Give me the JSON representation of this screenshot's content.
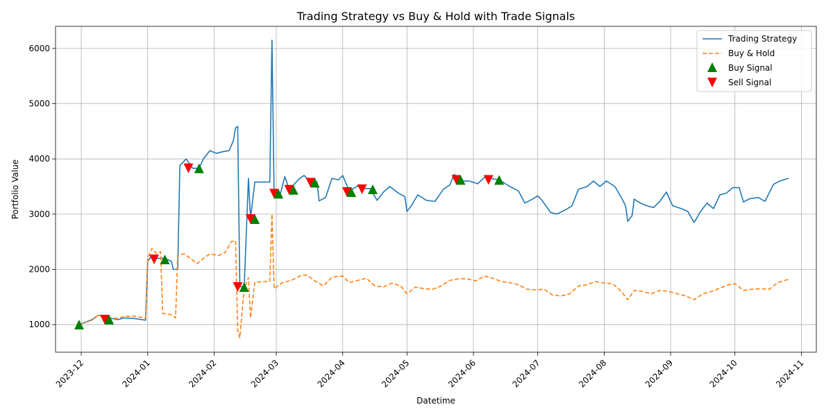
{
  "chart_data": {
    "type": "line",
    "title": "Trading Strategy vs Buy & Hold with Trade Signals",
    "xlabel": "Datetime",
    "ylabel": "Portfolio Value",
    "xlim": [
      "2023-11-19",
      "2024-11-08"
    ],
    "ylim": [
      500,
      6400
    ],
    "x_ticks": [
      "2023-12",
      "2024-01",
      "2024-02",
      "2024-03",
      "2024-04",
      "2024-05",
      "2024-06",
      "2024-07",
      "2024-08",
      "2024-09",
      "2024-10",
      "2024-11"
    ],
    "y_ticks": [
      1000,
      2000,
      3000,
      4000,
      5000,
      6000
    ],
    "grid": true,
    "legend_position": "top-right",
    "colors": {
      "strategy": "#1f77b4",
      "buy_hold": "#ff7f0e",
      "buy_signal": "#008000",
      "sell_signal": "#ff0000"
    },
    "series": [
      {
        "name": "Trading Strategy",
        "style": "solid",
        "points": [
          [
            "2023-11-30",
            1000
          ],
          [
            "2023-12-06",
            1090
          ],
          [
            "2023-12-09",
            1170
          ],
          [
            "2023-12-14",
            1120
          ],
          [
            "2023-12-18",
            1090
          ],
          [
            "2023-12-21",
            1120
          ],
          [
            "2023-12-26",
            1110
          ],
          [
            "2023-12-31",
            1080
          ],
          [
            "2024-01-01",
            2150
          ],
          [
            "2024-01-03",
            2250
          ],
          [
            "2024-01-05",
            2200
          ],
          [
            "2024-01-09",
            2200
          ],
          [
            "2024-01-12",
            2150
          ],
          [
            "2024-01-13",
            2000
          ],
          [
            "2024-01-15",
            2000
          ],
          [
            "2024-01-16",
            3880
          ],
          [
            "2024-01-19",
            4000
          ],
          [
            "2024-01-22",
            3830
          ],
          [
            "2024-01-25",
            3830
          ],
          [
            "2024-01-27",
            4000
          ],
          [
            "2024-01-30",
            4150
          ],
          [
            "2024-02-02",
            4100
          ],
          [
            "2024-02-05",
            4130
          ],
          [
            "2024-02-08",
            4150
          ],
          [
            "2024-02-10",
            4330
          ],
          [
            "2024-02-11",
            4560
          ],
          [
            "2024-02-12",
            4590
          ],
          [
            "2024-02-13",
            1700
          ],
          [
            "2024-02-15",
            1650
          ],
          [
            "2024-02-17",
            3650
          ],
          [
            "2024-02-18",
            2920
          ],
          [
            "2024-02-20",
            3580
          ],
          [
            "2024-02-27",
            3580
          ],
          [
            "2024-02-28",
            6150
          ],
          [
            "2024-02-29",
            3350
          ],
          [
            "2024-03-03",
            3380
          ],
          [
            "2024-03-05",
            3680
          ],
          [
            "2024-03-07",
            3450
          ],
          [
            "2024-03-12",
            3650
          ],
          [
            "2024-03-14",
            3700
          ],
          [
            "2024-03-17",
            3580
          ],
          [
            "2024-03-20",
            3580
          ],
          [
            "2024-03-21",
            3240
          ],
          [
            "2024-03-24",
            3300
          ],
          [
            "2024-03-27",
            3650
          ],
          [
            "2024-03-30",
            3620
          ],
          [
            "2024-04-01",
            3700
          ],
          [
            "2024-04-04",
            3420
          ],
          [
            "2024-04-08",
            3510
          ],
          [
            "2024-04-10",
            3470
          ],
          [
            "2024-04-14",
            3460
          ],
          [
            "2024-04-17",
            3250
          ],
          [
            "2024-04-20",
            3400
          ],
          [
            "2024-04-23",
            3500
          ],
          [
            "2024-04-27",
            3380
          ],
          [
            "2024-04-30",
            3320
          ],
          [
            "2024-05-01",
            3050
          ],
          [
            "2024-05-03",
            3150
          ],
          [
            "2024-05-06",
            3350
          ],
          [
            "2024-05-10",
            3250
          ],
          [
            "2024-05-14",
            3230
          ],
          [
            "2024-05-18",
            3450
          ],
          [
            "2024-05-21",
            3530
          ],
          [
            "2024-05-23",
            3720
          ],
          [
            "2024-05-27",
            3600
          ],
          [
            "2024-05-30",
            3600
          ],
          [
            "2024-06-03",
            3550
          ],
          [
            "2024-06-07",
            3700
          ],
          [
            "2024-06-10",
            3640
          ],
          [
            "2024-06-13",
            3620
          ],
          [
            "2024-06-18",
            3500
          ],
          [
            "2024-06-22",
            3420
          ],
          [
            "2024-06-25",
            3200
          ],
          [
            "2024-06-28",
            3260
          ],
          [
            "2024-07-01",
            3330
          ],
          [
            "2024-07-03",
            3250
          ],
          [
            "2024-07-07",
            3030
          ],
          [
            "2024-07-10",
            3000
          ],
          [
            "2024-07-14",
            3080
          ],
          [
            "2024-07-17",
            3150
          ],
          [
            "2024-07-20",
            3450
          ],
          [
            "2024-07-24",
            3500
          ],
          [
            "2024-07-27",
            3600
          ],
          [
            "2024-07-30",
            3500
          ],
          [
            "2024-08-02",
            3600
          ],
          [
            "2024-08-06",
            3500
          ],
          [
            "2024-08-09",
            3300
          ],
          [
            "2024-08-11",
            3150
          ],
          [
            "2024-08-12",
            2870
          ],
          [
            "2024-08-14",
            2970
          ],
          [
            "2024-08-15",
            3270
          ],
          [
            "2024-08-18",
            3200
          ],
          [
            "2024-08-21",
            3150
          ],
          [
            "2024-08-24",
            3120
          ],
          [
            "2024-08-27",
            3230
          ],
          [
            "2024-08-30",
            3400
          ],
          [
            "2024-09-02",
            3150
          ],
          [
            "2024-09-06",
            3100
          ],
          [
            "2024-09-09",
            3050
          ],
          [
            "2024-09-12",
            2850
          ],
          [
            "2024-09-15",
            3050
          ],
          [
            "2024-09-18",
            3200
          ],
          [
            "2024-09-21",
            3100
          ],
          [
            "2024-09-24",
            3350
          ],
          [
            "2024-09-27",
            3380
          ],
          [
            "2024-09-30",
            3480
          ],
          [
            "2024-10-03",
            3480
          ],
          [
            "2024-10-05",
            3220
          ],
          [
            "2024-10-08",
            3280
          ],
          [
            "2024-10-12",
            3300
          ],
          [
            "2024-10-15",
            3230
          ],
          [
            "2024-10-19",
            3540
          ],
          [
            "2024-10-22",
            3600
          ],
          [
            "2024-10-26",
            3650
          ]
        ]
      },
      {
        "name": "Buy & Hold",
        "style": "dashed",
        "points": [
          [
            "2023-11-30",
            1000
          ],
          [
            "2023-12-06",
            1080
          ],
          [
            "2023-12-09",
            1170
          ],
          [
            "2023-12-14",
            1120
          ],
          [
            "2023-12-18",
            1110
          ],
          [
            "2023-12-21",
            1150
          ],
          [
            "2023-12-26",
            1150
          ],
          [
            "2023-12-31",
            1120
          ],
          [
            "2024-01-01",
            2200
          ],
          [
            "2024-01-03",
            2380
          ],
          [
            "2024-01-05",
            2290
          ],
          [
            "2024-01-07",
            2320
          ],
          [
            "2024-01-08",
            1200
          ],
          [
            "2024-01-12",
            1180
          ],
          [
            "2024-01-14",
            1120
          ],
          [
            "2024-01-15",
            2250
          ],
          [
            "2024-01-18",
            2280
          ],
          [
            "2024-01-21",
            2200
          ],
          [
            "2024-01-24",
            2100
          ],
          [
            "2024-01-27",
            2200
          ],
          [
            "2024-01-30",
            2280
          ],
          [
            "2024-02-03",
            2250
          ],
          [
            "2024-02-06",
            2300
          ],
          [
            "2024-02-09",
            2500
          ],
          [
            "2024-02-11",
            2520
          ],
          [
            "2024-02-12",
            900
          ],
          [
            "2024-02-13",
            760
          ],
          [
            "2024-02-15",
            1650
          ],
          [
            "2024-02-17",
            1850
          ],
          [
            "2024-02-18",
            1120
          ],
          [
            "2024-02-20",
            1770
          ],
          [
            "2024-02-27",
            1780
          ],
          [
            "2024-02-28",
            3000
          ],
          [
            "2024-02-29",
            1650
          ],
          [
            "2024-03-04",
            1760
          ],
          [
            "2024-03-08",
            1800
          ],
          [
            "2024-03-12",
            1880
          ],
          [
            "2024-03-15",
            1900
          ],
          [
            "2024-03-19",
            1790
          ],
          [
            "2024-03-23",
            1700
          ],
          [
            "2024-03-27",
            1860
          ],
          [
            "2024-04-01",
            1880
          ],
          [
            "2024-04-04",
            1760
          ],
          [
            "2024-04-08",
            1800
          ],
          [
            "2024-04-12",
            1840
          ],
          [
            "2024-04-16",
            1700
          ],
          [
            "2024-04-20",
            1680
          ],
          [
            "2024-04-24",
            1750
          ],
          [
            "2024-04-28",
            1700
          ],
          [
            "2024-05-01",
            1560
          ],
          [
            "2024-05-05",
            1680
          ],
          [
            "2024-05-09",
            1650
          ],
          [
            "2024-05-13",
            1640
          ],
          [
            "2024-05-17",
            1700
          ],
          [
            "2024-05-21",
            1800
          ],
          [
            "2024-05-25",
            1830
          ],
          [
            "2024-05-29",
            1830
          ],
          [
            "2024-06-02",
            1790
          ],
          [
            "2024-06-06",
            1880
          ],
          [
            "2024-06-10",
            1840
          ],
          [
            "2024-06-14",
            1780
          ],
          [
            "2024-06-18",
            1760
          ],
          [
            "2024-06-22",
            1720
          ],
          [
            "2024-06-26",
            1640
          ],
          [
            "2024-06-30",
            1630
          ],
          [
            "2024-07-04",
            1640
          ],
          [
            "2024-07-08",
            1530
          ],
          [
            "2024-07-12",
            1520
          ],
          [
            "2024-07-16",
            1560
          ],
          [
            "2024-07-20",
            1700
          ],
          [
            "2024-07-24",
            1720
          ],
          [
            "2024-07-28",
            1780
          ],
          [
            "2024-08-01",
            1750
          ],
          [
            "2024-08-05",
            1740
          ],
          [
            "2024-08-09",
            1600
          ],
          [
            "2024-08-12",
            1450
          ],
          [
            "2024-08-15",
            1620
          ],
          [
            "2024-08-19",
            1600
          ],
          [
            "2024-08-23",
            1560
          ],
          [
            "2024-08-27",
            1620
          ],
          [
            "2024-08-31",
            1600
          ],
          [
            "2024-09-04",
            1560
          ],
          [
            "2024-09-08",
            1520
          ],
          [
            "2024-09-12",
            1450
          ],
          [
            "2024-09-16",
            1560
          ],
          [
            "2024-09-20",
            1600
          ],
          [
            "2024-09-24",
            1660
          ],
          [
            "2024-09-28",
            1720
          ],
          [
            "2024-10-01",
            1740
          ],
          [
            "2024-10-05",
            1620
          ],
          [
            "2024-10-09",
            1640
          ],
          [
            "2024-10-13",
            1650
          ],
          [
            "2024-10-17",
            1640
          ],
          [
            "2024-10-21",
            1760
          ],
          [
            "2024-10-26",
            1820
          ]
        ]
      }
    ],
    "buy_signals": [
      {
        "name": "Buy Signal",
        "x": "2023-11-30",
        "y": 1000
      },
      {
        "name": "Buy Signal",
        "x": "2023-12-14",
        "y": 1090
      },
      {
        "name": "Buy Signal",
        "x": "2024-01-09",
        "y": 2180
      },
      {
        "name": "Buy Signal",
        "x": "2024-01-25",
        "y": 3830
      },
      {
        "name": "Buy Signal",
        "x": "2024-02-15",
        "y": 1680
      },
      {
        "name": "Buy Signal",
        "x": "2024-02-20",
        "y": 2910
      },
      {
        "name": "Buy Signal",
        "x": "2024-03-02",
        "y": 3370
      },
      {
        "name": "Buy Signal",
        "x": "2024-03-09",
        "y": 3440
      },
      {
        "name": "Buy Signal",
        "x": "2024-03-19",
        "y": 3570
      },
      {
        "name": "Buy Signal",
        "x": "2024-04-05",
        "y": 3400
      },
      {
        "name": "Buy Signal",
        "x": "2024-04-15",
        "y": 3450
      },
      {
        "name": "Buy Signal",
        "x": "2024-05-26",
        "y": 3620
      },
      {
        "name": "Buy Signal",
        "x": "2024-06-13",
        "y": 3620
      }
    ],
    "sell_signals": [
      {
        "name": "Sell Signal",
        "x": "2023-12-12",
        "y": 1090
      },
      {
        "name": "Sell Signal",
        "x": "2024-01-04",
        "y": 2180
      },
      {
        "name": "Sell Signal",
        "x": "2024-01-20",
        "y": 3830
      },
      {
        "name": "Sell Signal",
        "x": "2024-02-12",
        "y": 1680
      },
      {
        "name": "Sell Signal",
        "x": "2024-02-18",
        "y": 2910
      },
      {
        "name": "Sell Signal",
        "x": "2024-02-29",
        "y": 3370
      },
      {
        "name": "Sell Signal",
        "x": "2024-03-07",
        "y": 3440
      },
      {
        "name": "Sell Signal",
        "x": "2024-03-17",
        "y": 3570
      },
      {
        "name": "Sell Signal",
        "x": "2024-04-03",
        "y": 3400
      },
      {
        "name": "Sell Signal",
        "x": "2024-04-10",
        "y": 3450
      },
      {
        "name": "Sell Signal",
        "x": "2024-05-24",
        "y": 3620
      },
      {
        "name": "Sell Signal",
        "x": "2024-06-08",
        "y": 3620
      }
    ],
    "legend": [
      "Trading Strategy",
      "Buy & Hold",
      "Buy Signal",
      "Sell Signal"
    ]
  }
}
